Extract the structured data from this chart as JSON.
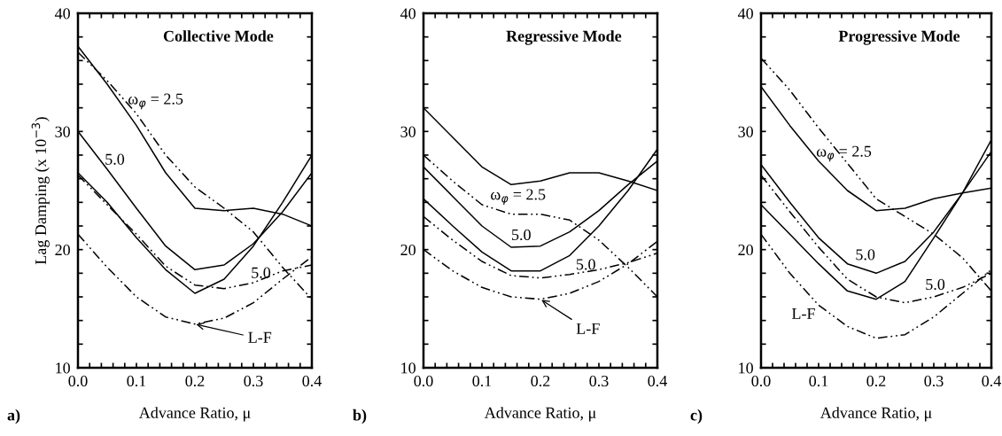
{
  "chart_data": [
    {
      "type": "line",
      "title": "Collective Mode",
      "xlabel": "Advance Ratio, μ",
      "ylabel": "Lag Damping (x 10$^{−3}$)",
      "x": [
        0,
        0.05,
        0.1,
        0.15,
        0.2,
        0.25,
        0.3,
        0.35,
        0.4
      ],
      "series": [
        {
          "color": "#000000",
          "line_style": "solid",
          "values": [
            37.2,
            34,
            30.5,
            26.5,
            23.5,
            23.3,
            23.5,
            23,
            22
          ]
        },
        {
          "color": "#000000",
          "line_style": "dashed",
          "values": [
            36.7,
            34.3,
            31.5,
            28,
            25.3,
            23.5,
            21.5,
            18.5,
            15.8
          ]
        },
        {
          "color": "#000000",
          "line_style": "solid",
          "values": [
            30,
            26.8,
            23.5,
            20.3,
            18.3,
            18.7,
            20.5,
            23.2,
            26.5
          ]
        },
        {
          "color": "#000000",
          "line_style": "solid",
          "values": [
            26.5,
            24,
            21,
            18.3,
            16.3,
            17.5,
            20.3,
            24,
            28
          ]
        },
        {
          "color": "#000000",
          "line_style": "dashed",
          "values": [
            26.3,
            23.8,
            21.3,
            18.6,
            17,
            16.7,
            17.2,
            18.2,
            18.7
          ]
        },
        {
          "color": "#000000",
          "line_style": "dashed",
          "values": [
            21.3,
            18.5,
            16,
            14.3,
            13.7,
            14.2,
            15.5,
            17.5,
            19.4
          ]
        }
      ],
      "xlim": [
        0,
        0.4
      ],
      "ylim": [
        10,
        40
      ],
      "xticks": [
        {
          "value": 0,
          "label": "0.0"
        },
        {
          "value": 0.02,
          "label": null
        },
        {
          "value": 0.04,
          "label": null
        },
        {
          "value": 0.06,
          "label": null
        },
        {
          "value": 0.08,
          "label": null
        },
        0.1,
        {
          "value": 0.12,
          "label": null
        },
        {
          "value": 0.14,
          "label": null
        },
        {
          "value": 0.16,
          "label": null
        },
        {
          "value": 0.18,
          "label": null
        },
        0.2,
        {
          "value": 0.22,
          "label": null
        },
        {
          "value": 0.24,
          "label": null
        },
        {
          "value": 0.26,
          "label": null
        },
        {
          "value": 0.28,
          "label": null
        },
        0.3,
        {
          "value": 0.32,
          "label": null
        },
        {
          "value": 0.34,
          "label": null
        },
        {
          "value": 0.36,
          "label": null
        },
        {
          "value": 0.38,
          "label": null
        },
        0.4
      ],
      "yticks": [
        10,
        {
          "value": 12,
          "label": null
        },
        {
          "value": 14,
          "label": null
        },
        {
          "value": 16,
          "label": null
        },
        {
          "value": 18,
          "label": null
        },
        20,
        {
          "value": 22,
          "label": null
        },
        {
          "value": 24,
          "label": null
        },
        {
          "value": 26,
          "label": null
        },
        {
          "value": 28,
          "label": null
        },
        30,
        {
          "value": 32,
          "label": null
        },
        {
          "value": 34,
          "label": null
        },
        {
          "value": 36,
          "label": null
        },
        {
          "value": 38,
          "label": null
        },
        40
      ],
      "annotations": [
        "a)",
        {
          "text": "ω$_{φ}$ = 2.5",
          "x": 0.1,
          "y": 31.5
        },
        {
          "text": "5.0",
          "x": 0.05,
          "y": 26.8
        },
        {
          "text": "5.0",
          "x": 0.3,
          "y": 17.2
        },
        {
          "text": "L-F",
          "x": 0.2,
          "y": 13.7
        }
      ]
    },
    {
      "type": "line",
      "title": "Regressive Mode",
      "xlabel": "Advance Ratio, μ",
      "x": [
        0,
        0.05,
        0.1,
        0.15,
        0.2,
        0.25,
        0.3,
        0.35,
        0.4
      ],
      "series": [
        {
          "color": "#000000",
          "line_style": "solid",
          "values": [
            32,
            29.5,
            27,
            25.5,
            25.8,
            26.5,
            26.5,
            25.8,
            25
          ]
        },
        {
          "color": "#000000",
          "line_style": "dashed",
          "values": [
            28,
            25.8,
            23.8,
            23,
            23,
            22.5,
            20.8,
            18.5,
            16
          ]
        },
        {
          "color": "#000000",
          "line_style": "solid",
          "values": [
            27,
            24.5,
            22,
            20.2,
            20.3,
            21.5,
            23.3,
            25.5,
            27.5
          ]
        },
        {
          "color": "#000000",
          "line_style": "solid",
          "values": [
            24.3,
            22,
            19.8,
            18.2,
            18.2,
            19.5,
            22,
            25,
            28.5
          ]
        },
        {
          "color": "#000000",
          "line_style": "dashed",
          "values": [
            22.8,
            20.8,
            19,
            17.8,
            17.6,
            17.9,
            18.3,
            18.9,
            19.7
          ]
        },
        {
          "color": "#000000",
          "line_style": "dashed",
          "values": [
            20,
            18.2,
            16.8,
            16,
            15.8,
            16.3,
            17.3,
            18.8,
            20.7
          ]
        }
      ],
      "xlim": [
        0,
        0.4
      ],
      "ylim": [
        10,
        40
      ],
      "xticks": [
        {
          "value": 0,
          "label": "0.0"
        },
        {
          "value": 0.02,
          "label": null
        },
        {
          "value": 0.04,
          "label": null
        },
        {
          "value": 0.06,
          "label": null
        },
        {
          "value": 0.08,
          "label": null
        },
        0.1,
        {
          "value": 0.12,
          "label": null
        },
        {
          "value": 0.14,
          "label": null
        },
        {
          "value": 0.16,
          "label": null
        },
        {
          "value": 0.18,
          "label": null
        },
        0.2,
        {
          "value": 0.22,
          "label": null
        },
        {
          "value": 0.24,
          "label": null
        },
        {
          "value": 0.26,
          "label": null
        },
        {
          "value": 0.28,
          "label": null
        },
        0.3,
        {
          "value": 0.32,
          "label": null
        },
        {
          "value": 0.34,
          "label": null
        },
        {
          "value": 0.36,
          "label": null
        },
        {
          "value": 0.38,
          "label": null
        },
        0.4
      ],
      "yticks": [
        10,
        {
          "value": 12,
          "label": null
        },
        {
          "value": 14,
          "label": null
        },
        {
          "value": 16,
          "label": null
        },
        {
          "value": 18,
          "label": null
        },
        20,
        {
          "value": 22,
          "label": null
        },
        {
          "value": 24,
          "label": null
        },
        {
          "value": 26,
          "label": null
        },
        {
          "value": 28,
          "label": null
        },
        30,
        {
          "value": 32,
          "label": null
        },
        {
          "value": 34,
          "label": null
        },
        {
          "value": 36,
          "label": null
        },
        {
          "value": 38,
          "label": null
        },
        40
      ],
      "annotations": [
        "b)",
        {
          "text": "ω$_{φ}$ = 2.5",
          "x": 0.15,
          "y": 23
        },
        {
          "text": "5.0",
          "x": 0.15,
          "y": 20.2
        },
        {
          "text": "5.0",
          "x": 0.25,
          "y": 17.9
        },
        {
          "text": "L-F",
          "x": 0.2,
          "y": 15.8
        }
      ]
    },
    {
      "type": "line",
      "title": "Progressive Mode",
      "xlabel": "Advance Ratio, μ",
      "x": [
        0,
        0.05,
        0.1,
        0.15,
        0.2,
        0.25,
        0.3,
        0.35,
        0.4
      ],
      "series": [
        {
          "color": "#000000",
          "line_style": "dashed",
          "values": [
            36.2,
            33.5,
            30.3,
            27.3,
            24.3,
            22.8,
            21.3,
            19.3,
            16.5
          ]
        },
        {
          "color": "#000000",
          "line_style": "solid",
          "values": [
            33.8,
            30.5,
            27.5,
            25,
            23.3,
            23.5,
            24.3,
            24.8,
            25.2
          ]
        },
        {
          "color": "#000000",
          "line_style": "solid",
          "values": [
            27.2,
            24,
            21,
            18.8,
            18,
            19,
            21.5,
            24.8,
            28.3
          ]
        },
        {
          "color": "#000000",
          "line_style": "dashed",
          "values": [
            26.3,
            23.2,
            20.2,
            17.5,
            16,
            15.5,
            16,
            16.8,
            18
          ]
        },
        {
          "color": "#000000",
          "line_style": "solid",
          "values": [
            23.8,
            21.3,
            18.8,
            16.5,
            15.8,
            17.3,
            21,
            24.8,
            29.3
          ]
        },
        {
          "color": "#000000",
          "line_style": "dashed",
          "values": [
            21.3,
            18,
            15.3,
            13.5,
            12.5,
            12.8,
            14.3,
            16.3,
            18.3
          ]
        }
      ],
      "xlim": [
        0,
        0.4
      ],
      "ylim": [
        10,
        40
      ],
      "xticks": [
        {
          "value": 0,
          "label": "0.0"
        },
        {
          "value": 0.02,
          "label": null
        },
        {
          "value": 0.04,
          "label": null
        },
        {
          "value": 0.06,
          "label": null
        },
        {
          "value": 0.08,
          "label": null
        },
        0.1,
        {
          "value": 0.12,
          "label": null
        },
        {
          "value": 0.14,
          "label": null
        },
        {
          "value": 0.16,
          "label": null
        },
        {
          "value": 0.18,
          "label": null
        },
        0.2,
        {
          "value": 0.22,
          "label": null
        },
        {
          "value": 0.24,
          "label": null
        },
        {
          "value": 0.26,
          "label": null
        },
        {
          "value": 0.28,
          "label": null
        },
        0.3,
        {
          "value": 0.32,
          "label": null
        },
        {
          "value": 0.34,
          "label": null
        },
        {
          "value": 0.36,
          "label": null
        },
        {
          "value": 0.38,
          "label": null
        },
        0.4
      ],
      "yticks": [
        10,
        {
          "value": 12,
          "label": null
        },
        {
          "value": 14,
          "label": null
        },
        {
          "value": 16,
          "label": null
        },
        {
          "value": 18,
          "label": null
        },
        20,
        {
          "value": 22,
          "label": null
        },
        {
          "value": 24,
          "label": null
        },
        {
          "value": 26,
          "label": null
        },
        {
          "value": 28,
          "label": null
        },
        30,
        {
          "value": 32,
          "label": null
        },
        {
          "value": 34,
          "label": null
        },
        {
          "value": 36,
          "label": null
        },
        {
          "value": 38,
          "label": null
        },
        40
      ],
      "annotations": [
        "c)",
        {
          "text": "ω$_{φ}$ = 2.5",
          "x": 0.1,
          "y": 30.3
        },
        {
          "text": "5.0",
          "x": 0.2,
          "y": 18
        },
        {
          "text": "5.0",
          "x": 0.3,
          "y": 16
        },
        {
          "text": "L-F",
          "x": 0.1,
          "y": 15.3
        }
      ]
    }
  ]
}
